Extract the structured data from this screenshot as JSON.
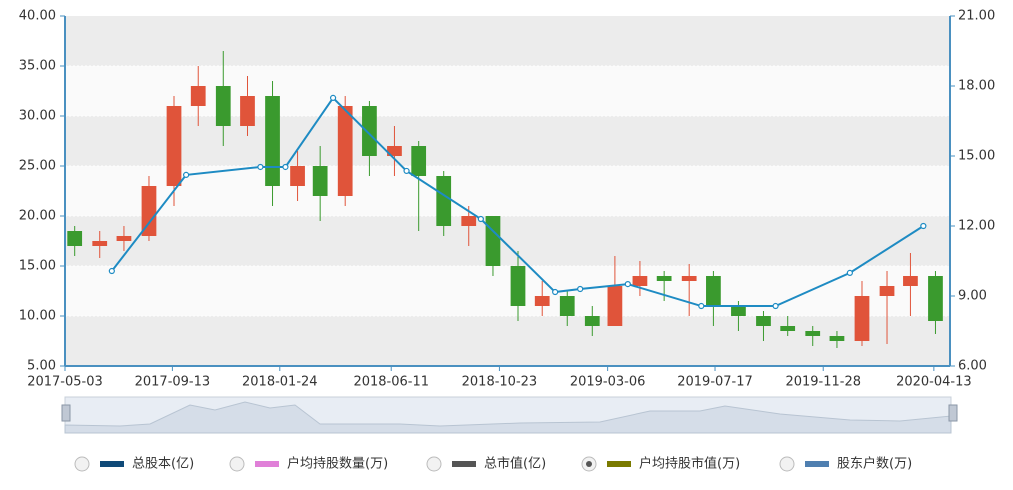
{
  "chart_data": {
    "type": "candlestick",
    "xlim": [
      "2017-05-03",
      "2020-05-03"
    ],
    "xticks": [
      "2017-05-03",
      "2017-09-13",
      "2018-01-24",
      "2018-06-11",
      "2018-10-23",
      "2019-03-06",
      "2019-07-17",
      "2019-11-28",
      "2020-04-13"
    ],
    "ylim": [
      5,
      40
    ],
    "yticks": [
      {
        "value": 5,
        "label": "5.00"
      },
      {
        "value": 10,
        "label": "10.00"
      },
      {
        "value": 15,
        "label": "15.00"
      },
      {
        "value": 20,
        "label": "20.00"
      },
      {
        "value": 25,
        "label": "25.00"
      },
      {
        "value": 30,
        "label": "30.00"
      },
      {
        "value": 35,
        "label": "35.00"
      },
      {
        "value": 40,
        "label": "40.00"
      }
    ],
    "y2lim": [
      6,
      21
    ],
    "y2ticks": [
      {
        "value": 6,
        "label": "6.00"
      },
      {
        "value": 9,
        "label": "9.00"
      },
      {
        "value": 12,
        "label": "12.00"
      },
      {
        "value": 15,
        "label": "15.00"
      },
      {
        "value": 18,
        "label": "18.00"
      },
      {
        "value": 21,
        "label": "21.00"
      }
    ],
    "grid": true,
    "up_color": "#e0543a",
    "down_color": "#3a9a2e",
    "candles": {
      "x": [
        "2017-05-15",
        "2017-06-15",
        "2017-07-15",
        "2017-08-15",
        "2017-09-15",
        "2017-10-15",
        "2017-11-15",
        "2017-12-15",
        "2018-01-15",
        "2018-02-15",
        "2018-03-15",
        "2018-04-15",
        "2018-05-15",
        "2018-06-15",
        "2018-07-15",
        "2018-08-15",
        "2018-09-15",
        "2018-10-15",
        "2018-11-15",
        "2018-12-15",
        "2019-01-15",
        "2019-02-15",
        "2019-03-15",
        "2019-04-15",
        "2019-05-15",
        "2019-06-15",
        "2019-07-15",
        "2019-08-15",
        "2019-09-15",
        "2019-10-15",
        "2019-11-15",
        "2019-12-15",
        "2020-01-15",
        "2020-02-15",
        "2020-03-15",
        "2020-04-15"
      ],
      "open": [
        18.5,
        17,
        17.5,
        18,
        23,
        31,
        33,
        29,
        32,
        23,
        25,
        22,
        31,
        26,
        27,
        24,
        19,
        20,
        15,
        11,
        12,
        10,
        9,
        13,
        14,
        13.5,
        14,
        11,
        10,
        9,
        8.5,
        8,
        7.5,
        12,
        13,
        14
      ],
      "high": [
        19,
        18.5,
        19,
        24,
        32,
        35,
        36.5,
        34,
        33.5,
        26.5,
        27,
        32,
        31.5,
        29,
        27.5,
        24.5,
        21,
        20,
        16.5,
        13.5,
        12.5,
        11,
        16,
        15.5,
        14.5,
        15.2,
        14.5,
        11.5,
        10.5,
        10,
        9,
        8.5,
        13.5,
        14.5,
        16.3,
        14.5
      ],
      "low": [
        16,
        15.8,
        16.5,
        17.5,
        21,
        29,
        27,
        28,
        21,
        21.5,
        19.5,
        21,
        24,
        24,
        18.5,
        18,
        17,
        14,
        9.5,
        10,
        9,
        8,
        9,
        12,
        11.5,
        10,
        9,
        8.5,
        7.5,
        8,
        7,
        6.8,
        7,
        7.2,
        10,
        8.2
      ],
      "close": [
        17,
        17.5,
        18,
        23,
        31,
        33,
        29,
        32,
        23,
        25,
        22,
        31,
        26,
        27,
        24,
        19,
        20,
        15,
        11,
        12,
        10,
        9,
        13,
        14,
        13.5,
        14,
        11,
        10,
        9,
        8.5,
        8,
        7.5,
        12,
        13,
        14,
        9.5
      ]
    },
    "line": {
      "color": "#1e8bc3",
      "axis": "y2",
      "x": [
        "2017-06-30",
        "2017-09-30",
        "2017-12-31",
        "2018-01-31",
        "2018-03-31",
        "2018-06-30",
        "2018-09-30",
        "2018-12-31",
        "2019-01-31",
        "2019-03-31",
        "2019-06-30",
        "2019-09-30",
        "2019-12-31",
        "2020-03-31"
      ],
      "values": [
        10.07,
        14.19,
        14.53,
        14.53,
        17.49,
        14.36,
        12.3,
        9.17,
        9.3,
        9.51,
        8.57,
        8.57,
        9.99,
        12.0
      ]
    },
    "legend": [
      {
        "name": "总股本(亿)",
        "color": "#0f4a78",
        "selected": false
      },
      {
        "name": "户均持股数量(万)",
        "color": "#e080d8",
        "selected": false
      },
      {
        "name": "总市值(亿)",
        "color": "#555555",
        "selected": false
      },
      {
        "name": "户均持股市值(万)",
        "color": "#7a7a00",
        "selected": true
      },
      {
        "name": "股东户数(万)",
        "color": "#4f7fb0",
        "selected": false
      }
    ]
  }
}
